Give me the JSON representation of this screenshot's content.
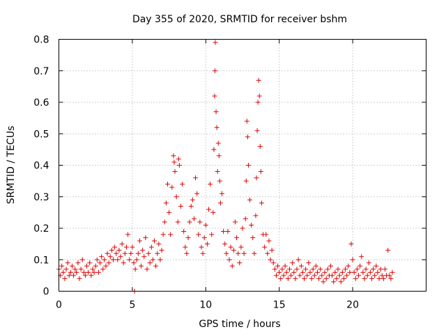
{
  "chart_data": {
    "type": "scatter",
    "title": "Day 355 of 2020, SRMTID for receiver bshm",
    "xlabel": "GPS time / hours",
    "ylabel": "SRMTID / TECUs",
    "xlim": [
      0,
      25
    ],
    "ylim": [
      0,
      0.8
    ],
    "xticks": [
      {
        "value": 0,
        "label": "0"
      },
      {
        "value": 5,
        "label": "5"
      },
      {
        "value": 10,
        "label": "10"
      },
      {
        "value": 15,
        "label": "15"
      },
      {
        "value": 20,
        "label": "20"
      }
    ],
    "yticks": [
      {
        "value": 0,
        "label": "0"
      },
      {
        "value": 0.1,
        "label": "0.1"
      },
      {
        "value": 0.2,
        "label": "0.2"
      },
      {
        "value": 0.3,
        "label": "0.3"
      },
      {
        "value": 0.4,
        "label": "0.4"
      },
      {
        "value": 0.5,
        "label": "0.5"
      },
      {
        "value": 0.6,
        "label": "0.6"
      },
      {
        "value": 0.7,
        "label": "0.7"
      },
      {
        "value": 0.8,
        "label": "0.8"
      }
    ],
    "grid": true,
    "marker": "plus",
    "color": "#e00000",
    "series": [
      {
        "name": "SRMTID",
        "points": [
          [
            0.0,
            0.07
          ],
          [
            0.1,
            0.05
          ],
          [
            0.2,
            0.08
          ],
          [
            0.3,
            0.06
          ],
          [
            0.4,
            0.04
          ],
          [
            0.5,
            0.07
          ],
          [
            0.6,
            0.09
          ],
          [
            0.7,
            0.05
          ],
          [
            0.8,
            0.06
          ],
          [
            0.9,
            0.08
          ],
          [
            1.0,
            0.05
          ],
          [
            1.1,
            0.07
          ],
          [
            1.2,
            0.06
          ],
          [
            1.3,
            0.09
          ],
          [
            1.4,
            0.04
          ],
          [
            1.5,
            0.07
          ],
          [
            1.6,
            0.1
          ],
          [
            1.7,
            0.06
          ],
          [
            1.8,
            0.05
          ],
          [
            1.9,
            0.08
          ],
          [
            2.0,
            0.06
          ],
          [
            2.1,
            0.09
          ],
          [
            2.2,
            0.05
          ],
          [
            2.3,
            0.07
          ],
          [
            2.4,
            0.06
          ],
          [
            2.5,
            0.08
          ],
          [
            2.6,
            0.1
          ],
          [
            2.7,
            0.06
          ],
          [
            2.8,
            0.09
          ],
          [
            2.9,
            0.11
          ],
          [
            3.0,
            0.07
          ],
          [
            3.1,
            0.1
          ],
          [
            3.2,
            0.08
          ],
          [
            3.3,
            0.12
          ],
          [
            3.4,
            0.09
          ],
          [
            3.5,
            0.11
          ],
          [
            3.6,
            0.13
          ],
          [
            3.7,
            0.1
          ],
          [
            3.8,
            0.14
          ],
          [
            3.9,
            0.12
          ],
          [
            4.0,
            0.1
          ],
          [
            4.1,
            0.13
          ],
          [
            4.2,
            0.11
          ],
          [
            4.3,
            0.15
          ],
          [
            4.4,
            0.09
          ],
          [
            4.5,
            0.12
          ],
          [
            4.6,
            0.14
          ],
          [
            4.7,
            0.18
          ],
          [
            4.8,
            0.1
          ],
          [
            4.9,
            0.12
          ],
          [
            5.0,
            0.14
          ],
          [
            5.1,
            0.09
          ],
          [
            5.15,
            0.0
          ],
          [
            5.2,
            0.07
          ],
          [
            5.3,
            0.1
          ],
          [
            5.4,
            0.12
          ],
          [
            5.5,
            0.16
          ],
          [
            5.6,
            0.08
          ],
          [
            5.7,
            0.13
          ],
          [
            5.8,
            0.11
          ],
          [
            5.9,
            0.17
          ],
          [
            6.0,
            0.07
          ],
          [
            6.1,
            0.12
          ],
          [
            6.2,
            0.09
          ],
          [
            6.3,
            0.14
          ],
          [
            6.4,
            0.1
          ],
          [
            6.5,
            0.16
          ],
          [
            6.6,
            0.08
          ],
          [
            6.7,
            0.12
          ],
          [
            6.8,
            0.15
          ],
          [
            6.9,
            0.1
          ],
          [
            7.0,
            0.13
          ],
          [
            7.1,
            0.18
          ],
          [
            7.2,
            0.22
          ],
          [
            7.3,
            0.28
          ],
          [
            7.4,
            0.34
          ],
          [
            7.5,
            0.25
          ],
          [
            7.6,
            0.18
          ],
          [
            7.7,
            0.33
          ],
          [
            7.8,
            0.43
          ],
          [
            7.85,
            0.41
          ],
          [
            7.9,
            0.38
          ],
          [
            8.0,
            0.3
          ],
          [
            8.1,
            0.22
          ],
          [
            8.15,
            0.42
          ],
          [
            8.2,
            0.4
          ],
          [
            8.3,
            0.27
          ],
          [
            8.4,
            0.34
          ],
          [
            8.5,
            0.19
          ],
          [
            8.6,
            0.14
          ],
          [
            8.7,
            0.12
          ],
          [
            8.8,
            0.17
          ],
          [
            8.9,
            0.22
          ],
          [
            9.0,
            0.27
          ],
          [
            9.1,
            0.29
          ],
          [
            9.2,
            0.23
          ],
          [
            9.3,
            0.36
          ],
          [
            9.4,
            0.31
          ],
          [
            9.5,
            0.18
          ],
          [
            9.6,
            0.22
          ],
          [
            9.7,
            0.14
          ],
          [
            9.8,
            0.12
          ],
          [
            9.9,
            0.17
          ],
          [
            10.0,
            0.21
          ],
          [
            10.1,
            0.15
          ],
          [
            10.2,
            0.26
          ],
          [
            10.3,
            0.34
          ],
          [
            10.4,
            0.18
          ],
          [
            10.5,
            0.25
          ],
          [
            10.55,
            0.45
          ],
          [
            10.6,
            0.62
          ],
          [
            10.62,
            0.7
          ],
          [
            10.65,
            0.79
          ],
          [
            10.7,
            0.57
          ],
          [
            10.75,
            0.52
          ],
          [
            10.8,
            0.38
          ],
          [
            10.85,
            0.47
          ],
          [
            10.9,
            0.43
          ],
          [
            10.95,
            0.35
          ],
          [
            11.0,
            0.28
          ],
          [
            11.1,
            0.31
          ],
          [
            11.2,
            0.19
          ],
          [
            11.3,
            0.15
          ],
          [
            11.4,
            0.12
          ],
          [
            11.5,
            0.19
          ],
          [
            11.6,
            0.1
          ],
          [
            11.7,
            0.14
          ],
          [
            11.8,
            0.08
          ],
          [
            11.9,
            0.13
          ],
          [
            12.0,
            0.22
          ],
          [
            12.1,
            0.17
          ],
          [
            12.2,
            0.12
          ],
          [
            12.3,
            0.09
          ],
          [
            12.4,
            0.14
          ],
          [
            12.5,
            0.2
          ],
          [
            12.6,
            0.12
          ],
          [
            12.7,
            0.23
          ],
          [
            12.75,
            0.35
          ],
          [
            12.8,
            0.54
          ],
          [
            12.85,
            0.49
          ],
          [
            12.9,
            0.4
          ],
          [
            13.0,
            0.29
          ],
          [
            13.1,
            0.21
          ],
          [
            13.2,
            0.17
          ],
          [
            13.3,
            0.12
          ],
          [
            13.4,
            0.24
          ],
          [
            13.45,
            0.36
          ],
          [
            13.5,
            0.51
          ],
          [
            13.55,
            0.6
          ],
          [
            13.6,
            0.67
          ],
          [
            13.65,
            0.62
          ],
          [
            13.7,
            0.46
          ],
          [
            13.75,
            0.38
          ],
          [
            13.8,
            0.28
          ],
          [
            13.9,
            0.18
          ],
          [
            14.0,
            0.14
          ],
          [
            14.1,
            0.18
          ],
          [
            14.2,
            0.12
          ],
          [
            14.3,
            0.16
          ],
          [
            14.4,
            0.1
          ],
          [
            14.5,
            0.13
          ],
          [
            14.6,
            0.09
          ],
          [
            14.7,
            0.07
          ],
          [
            14.8,
            0.05
          ],
          [
            14.9,
            0.08
          ],
          [
            15.0,
            0.06
          ],
          [
            15.1,
            0.04
          ],
          [
            15.2,
            0.07
          ],
          [
            15.3,
            0.05
          ],
          [
            15.4,
            0.08
          ],
          [
            15.5,
            0.06
          ],
          [
            15.6,
            0.04
          ],
          [
            15.7,
            0.07
          ],
          [
            15.8,
            0.05
          ],
          [
            15.9,
            0.09
          ],
          [
            16.0,
            0.06
          ],
          [
            16.1,
            0.04
          ],
          [
            16.2,
            0.07
          ],
          [
            16.3,
            0.1
          ],
          [
            16.4,
            0.05
          ],
          [
            16.5,
            0.08
          ],
          [
            16.6,
            0.06
          ],
          [
            16.7,
            0.04
          ],
          [
            16.8,
            0.07
          ],
          [
            16.9,
            0.05
          ],
          [
            17.0,
            0.09
          ],
          [
            17.1,
            0.06
          ],
          [
            17.2,
            0.04
          ],
          [
            17.3,
            0.07
          ],
          [
            17.4,
            0.05
          ],
          [
            17.5,
            0.08
          ],
          [
            17.6,
            0.06
          ],
          [
            17.7,
            0.04
          ],
          [
            17.8,
            0.07
          ],
          [
            17.9,
            0.05
          ],
          [
            18.0,
            0.03
          ],
          [
            18.1,
            0.06
          ],
          [
            18.2,
            0.04
          ],
          [
            18.3,
            0.07
          ],
          [
            18.4,
            0.05
          ],
          [
            18.5,
            0.08
          ],
          [
            18.6,
            0.05
          ],
          [
            18.7,
            0.03
          ],
          [
            18.8,
            0.06
          ],
          [
            18.9,
            0.04
          ],
          [
            19.0,
            0.07
          ],
          [
            19.1,
            0.05
          ],
          [
            19.2,
            0.03
          ],
          [
            19.3,
            0.06
          ],
          [
            19.4,
            0.04
          ],
          [
            19.5,
            0.07
          ],
          [
            19.6,
            0.05
          ],
          [
            19.7,
            0.08
          ],
          [
            19.8,
            0.06
          ],
          [
            19.9,
            0.15
          ],
          [
            20.0,
            0.1
          ],
          [
            20.1,
            0.06
          ],
          [
            20.2,
            0.04
          ],
          [
            20.3,
            0.07
          ],
          [
            20.4,
            0.05
          ],
          [
            20.5,
            0.08
          ],
          [
            20.6,
            0.11
          ],
          [
            20.7,
            0.06
          ],
          [
            20.8,
            0.04
          ],
          [
            20.9,
            0.07
          ],
          [
            21.0,
            0.05
          ],
          [
            21.1,
            0.09
          ],
          [
            21.2,
            0.06
          ],
          [
            21.3,
            0.04
          ],
          [
            21.4,
            0.07
          ],
          [
            21.5,
            0.05
          ],
          [
            21.6,
            0.08
          ],
          [
            21.7,
            0.06
          ],
          [
            21.8,
            0.04
          ],
          [
            21.9,
            0.07
          ],
          [
            22.0,
            0.05
          ],
          [
            22.1,
            0.04
          ],
          [
            22.2,
            0.07
          ],
          [
            22.3,
            0.05
          ],
          [
            22.4,
            0.13
          ],
          [
            22.5,
            0.05
          ],
          [
            22.6,
            0.04
          ],
          [
            22.7,
            0.06
          ]
        ]
      }
    ]
  }
}
